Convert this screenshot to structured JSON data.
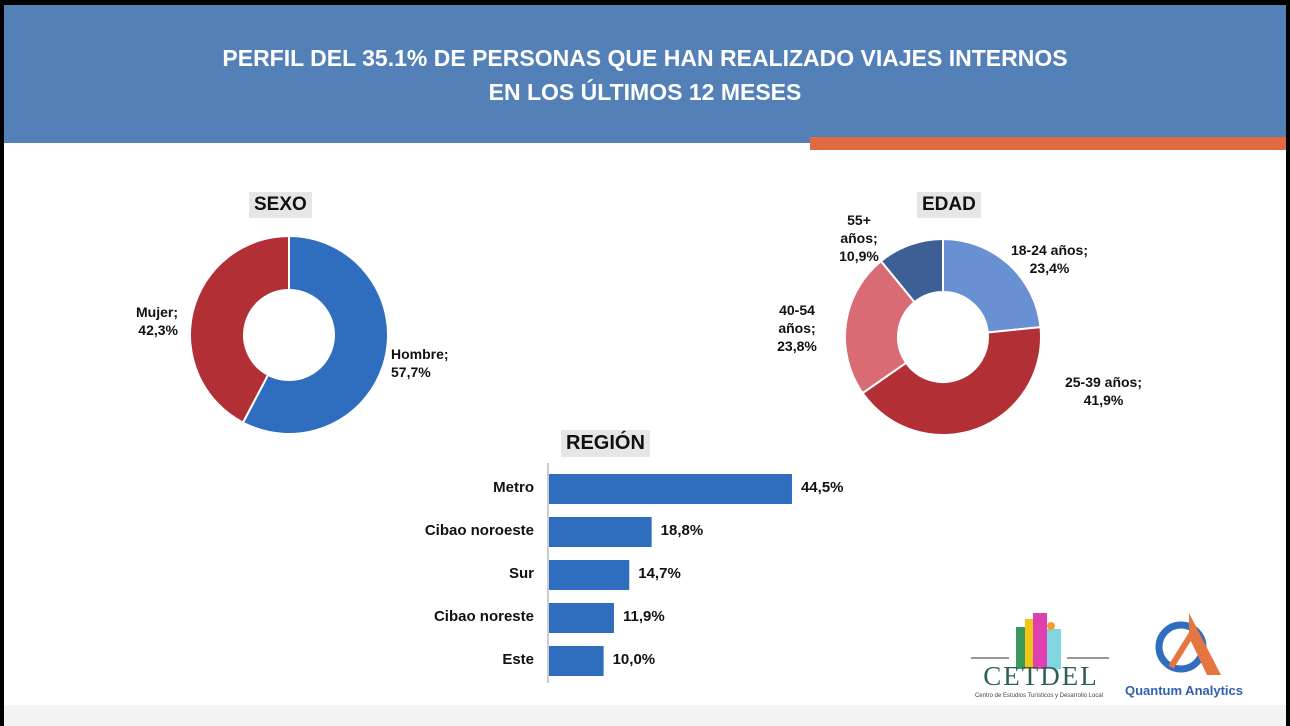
{
  "header": {
    "title_line1": "PERFIL DEL 35.1% DE PERSONAS QUE HAN REALIZADO VIAJES INTERNOS",
    "title_line2": "EN LOS ÚLTIMOS 12 MESES"
  },
  "chart_data": [
    {
      "type": "pie",
      "title": "SEXO",
      "donut": true,
      "slices": [
        {
          "label": "Hombre",
          "value": 57.7,
          "display": "57,7%",
          "color": "#2f6ebf"
        },
        {
          "label": "Mujer",
          "value": 42.3,
          "display": "42,3%",
          "color": "#b22f36"
        }
      ]
    },
    {
      "type": "pie",
      "title": "EDAD",
      "donut": true,
      "slices": [
        {
          "label": "18-24 años",
          "value": 23.4,
          "display": "23,4%",
          "color": "#6890d2"
        },
        {
          "label": "25-39 años",
          "value": 41.9,
          "display": "41,9%",
          "color": "#b22f36"
        },
        {
          "label": "40-54 años",
          "value": 23.8,
          "display": "23,8%",
          "color": "#d96b74"
        },
        {
          "label": "55+ años",
          "value": 10.9,
          "display": "10,9%",
          "color": "#3d5f96"
        }
      ]
    },
    {
      "type": "bar",
      "orientation": "horizontal",
      "title": "REGIÓN",
      "categories": [
        "Metro",
        "Cibao noroeste",
        "Sur",
        "Cibao noreste",
        "Este"
      ],
      "values": [
        44.5,
        18.8,
        14.7,
        11.9,
        10.0
      ],
      "labels": [
        "44,5%",
        "18,8%",
        "14,7%",
        "11,9%",
        "10,0%"
      ],
      "color": "#2f6ebf"
    }
  ],
  "logos": {
    "cetdel": "CETDEL",
    "cetdel_sub": "Centro de Estudios Turísticos y Desarrollo Local",
    "qa": "Quantum Analytics"
  }
}
